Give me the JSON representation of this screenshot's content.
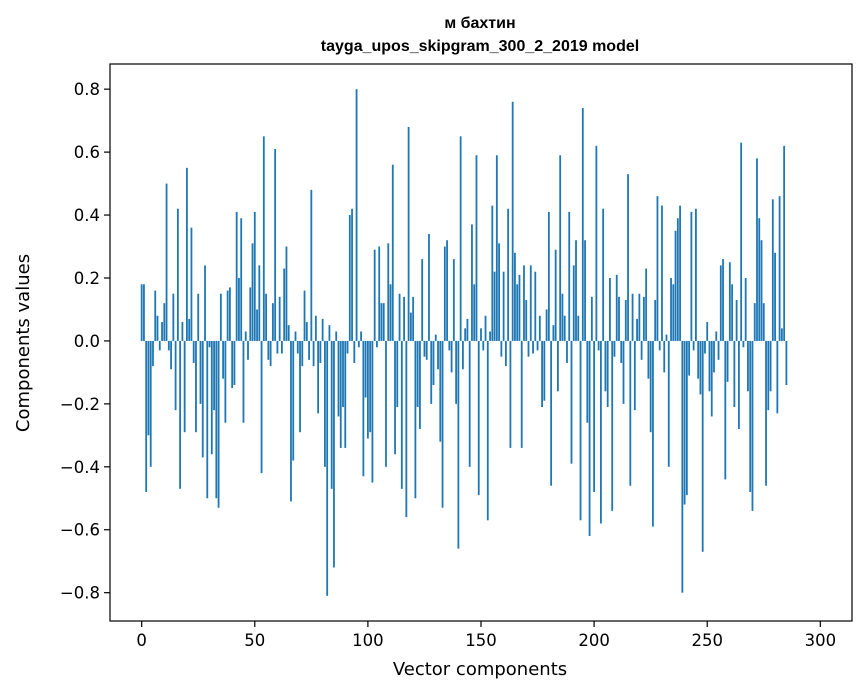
{
  "chart_data": {
    "type": "bar",
    "title": "м бахтин",
    "subtitle": "tayga_upos_skipgram_300_2_2019 model",
    "xlabel": "Vector components",
    "ylabel": "Components values",
    "xlim": [
      -14,
      314
    ],
    "ylim": [
      -0.89,
      0.88
    ],
    "xticks": [
      0,
      50,
      100,
      150,
      200,
      250,
      300
    ],
    "yticks": [
      -0.8,
      -0.6,
      -0.4,
      -0.2,
      0.0,
      0.2,
      0.4,
      0.6,
      0.8
    ],
    "ytick_labels": [
      "−0.8",
      "−0.6",
      "−0.4",
      "−0.2",
      "0.0",
      "0.2",
      "0.4",
      "0.6",
      "0.8"
    ],
    "grid": false,
    "bar_color": "#1f77b4",
    "values": [
      0.18,
      0.18,
      -0.48,
      -0.3,
      -0.4,
      -0.08,
      0.16,
      0.08,
      -0.03,
      0.06,
      0.12,
      0.5,
      -0.03,
      -0.09,
      0.15,
      -0.22,
      0.42,
      -0.47,
      0.06,
      -0.29,
      0.55,
      0.07,
      0.36,
      -0.07,
      -0.29,
      0.15,
      -0.2,
      -0.37,
      0.24,
      -0.5,
      -0.02,
      -0.36,
      -0.22,
      -0.5,
      -0.53,
      0.15,
      -0.12,
      -0.26,
      0.16,
      0.17,
      -0.15,
      -0.14,
      0.41,
      0.2,
      0.39,
      -0.26,
      0.03,
      -0.06,
      0.17,
      0.31,
      0.41,
      0.1,
      0.24,
      -0.42,
      0.65,
      0.15,
      -0.06,
      -0.08,
      0.12,
      0.61,
      -0.04,
      0.14,
      -0.04,
      0.23,
      0.3,
      0.05,
      -0.51,
      -0.38,
      0.03,
      -0.04,
      -0.29,
      -0.08,
      0.16,
      0.06,
      -0.06,
      0.48,
      -0.08,
      0.08,
      -0.23,
      -0.07,
      0.07,
      -0.4,
      -0.81,
      0.05,
      -0.47,
      -0.72,
      0.03,
      -0.24,
      -0.34,
      -0.21,
      -0.34,
      -0.04,
      0.4,
      0.42,
      -0.07,
      0.8,
      -0.02,
      0.03,
      -0.43,
      -0.18,
      -0.31,
      -0.29,
      -0.45,
      0.29,
      -0.02,
      0.3,
      0.12,
      0.12,
      -0.4,
      0.31,
      0.18,
      0.56,
      -0.36,
      -0.21,
      0.15,
      -0.47,
      0.14,
      -0.56,
      0.68,
      0.09,
      0.14,
      -0.5,
      -0.21,
      -0.28,
      0.26,
      -0.05,
      -0.06,
      0.34,
      -0.2,
      -0.14,
      0.02,
      -0.09,
      -0.32,
      -0.53,
      0.3,
      0.32,
      -0.03,
      -0.1,
      0.26,
      -0.2,
      -0.66,
      0.65,
      -0.09,
      0.04,
      0.07,
      -0.4,
      0.37,
      0.18,
      0.59,
      -0.49,
      0.04,
      -0.03,
      0.08,
      -0.57,
      0.03,
      0.43,
      0.22,
      0.59,
      0.31,
      -0.05,
      0.22,
      -0.08,
      0.42,
      -0.34,
      0.76,
      0.28,
      0.18,
      0.21,
      -0.34,
      0.24,
      0.13,
      -0.05,
      0.24,
      -0.04,
      0.22,
      -0.03,
      0.08,
      -0.21,
      -0.19,
      0.1,
      0.41,
      -0.46,
      0.05,
      0.29,
      -0.16,
      0.59,
      0.15,
      0.08,
      -0.07,
      0.41,
      -0.39,
      0.24,
      0.32,
      0.08,
      -0.57,
      0.74,
      0.32,
      -0.26,
      -0.62,
      0.14,
      -0.48,
      0.62,
      -0.03,
      -0.58,
      0.42,
      -0.16,
      -0.21,
      0.2,
      -0.54,
      -0.05,
      0.21,
      0.14,
      -0.07,
      -0.2,
      0.13,
      0.53,
      -0.46,
      0.15,
      -0.22,
      0.07,
      0.15,
      -0.06,
      0.14,
      0.23,
      -0.12,
      -0.29,
      -0.59,
      0.13,
      0.46,
      -0.03,
      0.43,
      -0.1,
      0.02,
      -0.4,
      0.2,
      0.18,
      0.35,
      0.39,
      0.43,
      -0.8,
      -0.52,
      -0.49,
      -0.11,
      0.41,
      -0.03,
      0.42,
      -0.12,
      -0.17,
      -0.67,
      -0.04,
      0.06,
      -0.16,
      -0.24,
      -0.1,
      0.03,
      -0.06,
      0.24,
      0.26,
      -0.44,
      -0.13,
      0.25,
      0.18,
      -0.21,
      0.13,
      -0.28,
      0.63,
      -0.02,
      0.2,
      -0.16,
      -0.48,
      -0.54,
      0.12,
      0.58,
      0.39,
      0.32,
      0.12,
      -0.46,
      -0.22,
      -0.16,
      0.45,
      0.28,
      -0.23,
      0.46,
      0.04,
      0.62,
      -0.14
    ]
  }
}
